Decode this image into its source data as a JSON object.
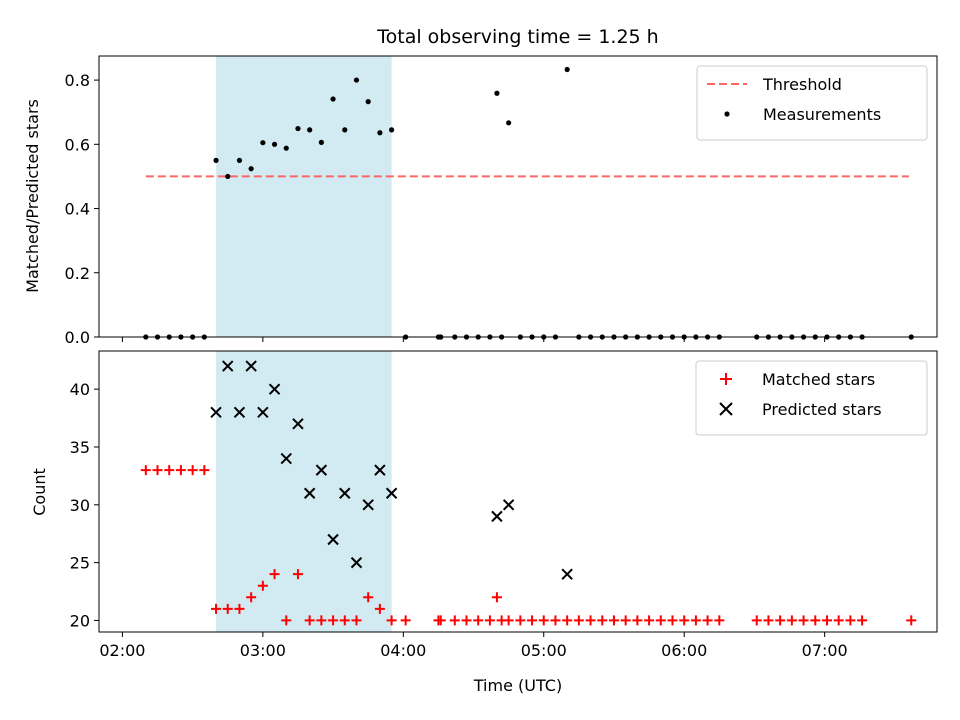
{
  "chart_data": {
    "type": "scatter",
    "title": "Total observing time = 1.25 h",
    "xlabel": "Time (UTC)",
    "x_ticks": [
      "02:00",
      "03:00",
      "04:00",
      "05:00",
      "06:00",
      "07:00"
    ],
    "shaded_interval": {
      "from": "02:40",
      "to": "03:55",
      "color": "#add8e6"
    },
    "panels": [
      {
        "ylabel": "Matched/Predicted stars",
        "ylim": [
          0,
          0.875
        ],
        "y_ticks": [
          "0.0",
          "0.2",
          "0.4",
          "0.6",
          "0.8"
        ],
        "legend_position": "upper right",
        "threshold": {
          "name": "Threshold",
          "value": 0.5,
          "x_from": "02:10",
          "x_to": "07:36",
          "color": "#ff6666",
          "style": "dashed"
        },
        "series": [
          {
            "name": "Measurements",
            "color": "#000000",
            "marker": "dot",
            "points": [
              [
                "02:10",
                0
              ],
              [
                "02:15",
                0
              ],
              [
                "02:20",
                0
              ],
              [
                "02:25",
                0
              ],
              [
                "02:30",
                0
              ],
              [
                "02:35",
                0
              ],
              [
                "02:40",
                0.55
              ],
              [
                "02:45",
                0.5
              ],
              [
                "02:50",
                0.55
              ],
              [
                "02:55",
                0.524
              ],
              [
                "03:00",
                0.605
              ],
              [
                "03:05",
                0.6
              ],
              [
                "03:10",
                0.588
              ],
              [
                "03:15",
                0.649
              ],
              [
                "03:20",
                0.645
              ],
              [
                "03:25",
                0.606
              ],
              [
                "03:30",
                0.741
              ],
              [
                "03:35",
                0.645
              ],
              [
                "03:40",
                0.8
              ],
              [
                "03:45",
                0.733
              ],
              [
                "03:50",
                0.636
              ],
              [
                "03:55",
                0.645
              ],
              [
                "04:01",
                0
              ],
              [
                "04:15",
                0
              ],
              [
                "04:16",
                0
              ],
              [
                "04:22",
                0
              ],
              [
                "04:27",
                0
              ],
              [
                "04:32",
                0
              ],
              [
                "04:37",
                0
              ],
              [
                "04:42",
                0
              ],
              [
                "04:40",
                0.759
              ],
              [
                "04:45",
                0.667
              ],
              [
                "04:50",
                0
              ],
              [
                "04:55",
                0
              ],
              [
                "05:00",
                0
              ],
              [
                "05:05",
                0
              ],
              [
                "05:10",
                0.833
              ],
              [
                "05:15",
                0
              ],
              [
                "05:20",
                0
              ],
              [
                "05:25",
                0
              ],
              [
                "05:30",
                0
              ],
              [
                "05:35",
                0
              ],
              [
                "05:40",
                0
              ],
              [
                "05:45",
                0
              ],
              [
                "05:50",
                0
              ],
              [
                "05:55",
                0
              ],
              [
                "06:00",
                0
              ],
              [
                "06:05",
                0
              ],
              [
                "06:10",
                0
              ],
              [
                "06:15",
                0
              ],
              [
                "06:31",
                0
              ],
              [
                "06:36",
                0
              ],
              [
                "06:41",
                0
              ],
              [
                "06:46",
                0
              ],
              [
                "06:51",
                0
              ],
              [
                "06:56",
                0
              ],
              [
                "07:01",
                0
              ],
              [
                "07:06",
                0
              ],
              [
                "07:11",
                0
              ],
              [
                "07:16",
                0
              ],
              [
                "07:37",
                0
              ]
            ]
          }
        ]
      },
      {
        "ylabel": "Count",
        "ylim": [
          19,
          43.3
        ],
        "y_ticks": [
          "20",
          "25",
          "30",
          "35",
          "40"
        ],
        "legend_position": "upper right",
        "series": [
          {
            "name": "Matched stars",
            "color": "#ff0000",
            "marker": "plus",
            "points": [
              [
                "02:10",
                33
              ],
              [
                "02:15",
                33
              ],
              [
                "02:20",
                33
              ],
              [
                "02:25",
                33
              ],
              [
                "02:30",
                33
              ],
              [
                "02:35",
                33
              ],
              [
                "02:40",
                21
              ],
              [
                "02:45",
                21
              ],
              [
                "02:50",
                21
              ],
              [
                "02:55",
                22
              ],
              [
                "03:00",
                23
              ],
              [
                "03:05",
                24
              ],
              [
                "03:10",
                20
              ],
              [
                "03:15",
                24
              ],
              [
                "03:20",
                20
              ],
              [
                "03:25",
                20
              ],
              [
                "03:30",
                20
              ],
              [
                "03:35",
                20
              ],
              [
                "03:40",
                20
              ],
              [
                "03:45",
                22
              ],
              [
                "03:50",
                21
              ],
              [
                "03:55",
                20
              ],
              [
                "04:01",
                20
              ],
              [
                "04:15",
                20
              ],
              [
                "04:16",
                20
              ],
              [
                "04:22",
                20
              ],
              [
                "04:27",
                20
              ],
              [
                "04:32",
                20
              ],
              [
                "04:37",
                20
              ],
              [
                "04:42",
                20
              ],
              [
                "04:40",
                22
              ],
              [
                "04:45",
                20
              ],
              [
                "04:50",
                20
              ],
              [
                "04:55",
                20
              ],
              [
                "05:00",
                20
              ],
              [
                "05:05",
                20
              ],
              [
                "05:10",
                20
              ],
              [
                "05:15",
                20
              ],
              [
                "05:20",
                20
              ],
              [
                "05:25",
                20
              ],
              [
                "05:30",
                20
              ],
              [
                "05:35",
                20
              ],
              [
                "05:40",
                20
              ],
              [
                "05:45",
                20
              ],
              [
                "05:50",
                20
              ],
              [
                "05:55",
                20
              ],
              [
                "06:00",
                20
              ],
              [
                "06:05",
                20
              ],
              [
                "06:10",
                20
              ],
              [
                "06:15",
                20
              ],
              [
                "06:31",
                20
              ],
              [
                "06:36",
                20
              ],
              [
                "06:41",
                20
              ],
              [
                "06:46",
                20
              ],
              [
                "06:51",
                20
              ],
              [
                "06:56",
                20
              ],
              [
                "07:01",
                20
              ],
              [
                "07:06",
                20
              ],
              [
                "07:11",
                20
              ],
              [
                "07:16",
                20
              ],
              [
                "07:37",
                20
              ]
            ]
          },
          {
            "name": "Predicted stars",
            "color": "#000000",
            "marker": "x",
            "points": [
              [
                "02:40",
                38
              ],
              [
                "02:45",
                42
              ],
              [
                "02:50",
                38
              ],
              [
                "02:55",
                42
              ],
              [
                "03:00",
                38
              ],
              [
                "03:05",
                40
              ],
              [
                "03:10",
                34
              ],
              [
                "03:15",
                37
              ],
              [
                "03:20",
                31
              ],
              [
                "03:25",
                33
              ],
              [
                "03:30",
                27
              ],
              [
                "03:35",
                31
              ],
              [
                "03:40",
                25
              ],
              [
                "03:45",
                30
              ],
              [
                "03:50",
                33
              ],
              [
                "03:55",
                31
              ],
              [
                "04:40",
                29
              ],
              [
                "04:45",
                30
              ],
              [
                "05:10",
                24
              ]
            ]
          }
        ]
      }
    ]
  }
}
